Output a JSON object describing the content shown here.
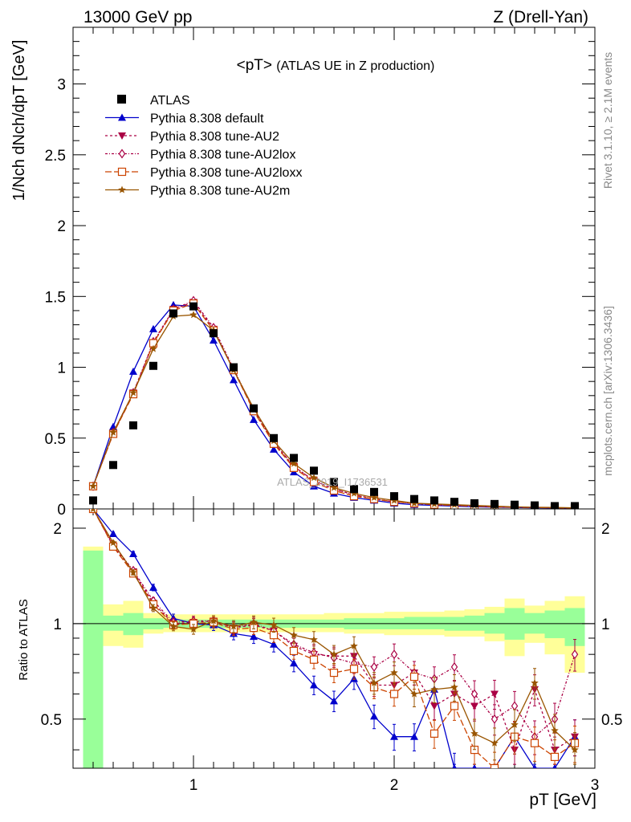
{
  "header": {
    "left": "13000 GeV pp",
    "right": "Z (Drell-Yan)"
  },
  "side": {
    "rivet": "Rivet 3.1.10, ≥ 2.1M events",
    "mcplots": "mcplots.cern.ch [arXiv:1306.3436]"
  },
  "chart_data": {
    "type": "scatter",
    "title": "<pT>",
    "subtitle": "(ATLAS UE in Z production)",
    "watermark": "ATLAS_2019_I1736531",
    "xlabel": "pT [GeV]",
    "ylabel": "1/Nch dNch/dpT [GeV]",
    "ratio_ylabel": "Ratio to ATLAS",
    "xlim": [
      0.4,
      3.0
    ],
    "ylim": [
      0,
      3.4
    ],
    "ratio_ylim": [
      0.35,
      2.3
    ],
    "xticks": [
      1,
      2,
      3
    ],
    "yticks": [
      0,
      0.5,
      1,
      1.5,
      2,
      2.5,
      3
    ],
    "ratio_yticks": [
      0.5,
      1,
      2
    ],
    "x": [
      0.5,
      0.6,
      0.7,
      0.8,
      0.9,
      1.0,
      1.1,
      1.2,
      1.3,
      1.4,
      1.5,
      1.6,
      1.7,
      1.8,
      1.9,
      2.0,
      2.1,
      2.2,
      2.3,
      2.4,
      2.5,
      2.6,
      2.7,
      2.8,
      2.9
    ],
    "data": {
      "name": "ATLAS",
      "values": [
        0.06,
        0.31,
        0.59,
        1.01,
        1.38,
        1.43,
        1.24,
        1.0,
        0.71,
        0.5,
        0.36,
        0.27,
        0.19,
        0.14,
        0.12,
        0.09,
        0.07,
        0.06,
        0.05,
        0.04,
        0.035,
        0.03,
        0.025,
        0.02,
        0.02
      ]
    },
    "series": [
      {
        "name": "Pythia 8.308 default",
        "color": "#0000cc",
        "dash": "",
        "marker": "triangle-up",
        "values": [
          0.16,
          0.58,
          0.97,
          1.27,
          1.44,
          1.43,
          1.19,
          0.91,
          0.63,
          0.42,
          0.26,
          0.16,
          0.11,
          0.08,
          0.06,
          0.04,
          0.03,
          0.025,
          0.02,
          0.015,
          0.012,
          0.01,
          0.008,
          0.006,
          0.005
        ],
        "ratio": [
          2.3,
          1.92,
          1.66,
          1.3,
          1.04,
          1.0,
          0.99,
          0.93,
          0.91,
          0.86,
          0.75,
          0.64,
          0.57,
          0.67,
          0.51,
          0.44,
          0.44,
          0.62,
          0.35,
          0.3,
          0.3,
          0.44,
          0.3,
          0.3,
          0.44
        ]
      },
      {
        "name": "Pythia 8.308 tune-AU2",
        "color": "#aa0044",
        "dash": "3,3",
        "marker": "triangle-down",
        "values": [
          0.16,
          0.53,
          0.82,
          1.17,
          1.41,
          1.46,
          1.27,
          0.98,
          0.7,
          0.47,
          0.3,
          0.2,
          0.14,
          0.1,
          0.07,
          0.05,
          0.04,
          0.03,
          0.025,
          0.02,
          0.015,
          0.012,
          0.01,
          0.008,
          0.007
        ],
        "ratio": [
          2.35,
          1.76,
          1.46,
          1.16,
          1.0,
          1.01,
          1.02,
          0.97,
          0.99,
          0.95,
          0.85,
          0.8,
          0.79,
          0.79,
          0.64,
          0.64,
          0.7,
          0.55,
          0.6,
          0.55,
          0.6,
          0.4,
          0.62,
          0.4,
          0.44
        ]
      },
      {
        "name": "Pythia 8.308 tune-AU2lox",
        "color": "#aa0044",
        "dash": "3,2,1,2",
        "marker": "diamond-open",
        "values": [
          0.16,
          0.54,
          0.82,
          1.18,
          1.41,
          1.47,
          1.28,
          0.99,
          0.7,
          0.47,
          0.3,
          0.2,
          0.14,
          0.1,
          0.07,
          0.05,
          0.04,
          0.03,
          0.025,
          0.02,
          0.015,
          0.012,
          0.01,
          0.008,
          0.007
        ],
        "ratio": [
          2.35,
          1.78,
          1.47,
          1.18,
          1.01,
          1.02,
          1.02,
          0.97,
          1.0,
          0.95,
          0.86,
          0.81,
          0.78,
          0.75,
          0.73,
          0.8,
          0.7,
          0.67,
          0.73,
          0.6,
          0.5,
          0.55,
          0.44,
          0.5,
          0.8
        ]
      },
      {
        "name": "Pythia 8.308 tune-AU2loxx",
        "color": "#cc4400",
        "dash": "8,3",
        "marker": "square-open",
        "values": [
          0.16,
          0.53,
          0.81,
          1.17,
          1.4,
          1.45,
          1.26,
          0.98,
          0.69,
          0.46,
          0.29,
          0.19,
          0.13,
          0.09,
          0.07,
          0.05,
          0.04,
          0.03,
          0.025,
          0.02,
          0.015,
          0.012,
          0.01,
          0.008,
          0.007
        ],
        "ratio": [
          2.3,
          1.75,
          1.44,
          1.15,
          0.99,
          1.0,
          1.01,
          0.96,
          0.97,
          0.92,
          0.82,
          0.77,
          0.7,
          0.72,
          0.63,
          0.6,
          0.68,
          0.45,
          0.55,
          0.4,
          0.35,
          0.44,
          0.42,
          0.38,
          0.42
        ]
      },
      {
        "name": "Pythia 8.308 tune-AU2m",
        "color": "#995500",
        "dash": "",
        "marker": "star",
        "values": [
          0.16,
          0.54,
          0.82,
          1.13,
          1.36,
          1.37,
          1.26,
          0.98,
          0.71,
          0.48,
          0.32,
          0.22,
          0.15,
          0.11,
          0.08,
          0.06,
          0.04,
          0.035,
          0.03,
          0.025,
          0.02,
          0.015,
          0.012,
          0.01,
          0.008
        ],
        "ratio": [
          2.35,
          1.8,
          1.45,
          1.12,
          0.98,
          0.96,
          1.02,
          0.98,
          1.01,
          0.99,
          0.92,
          0.89,
          0.8,
          0.85,
          0.65,
          0.7,
          0.6,
          0.62,
          0.63,
          0.45,
          0.42,
          0.48,
          0.65,
          0.46,
          0.4
        ]
      }
    ],
    "bands": {
      "yellow": [
        [
          0.4,
          1.75
        ],
        [
          0.85,
          1.15
        ],
        [
          0.84,
          1.18
        ],
        [
          0.93,
          1.08
        ],
        [
          0.94,
          1.07
        ],
        [
          0.94,
          1.07
        ],
        [
          0.94,
          1.07
        ],
        [
          0.94,
          1.07
        ],
        [
          0.94,
          1.07
        ],
        [
          0.94,
          1.07
        ],
        [
          0.94,
          1.07
        ],
        [
          0.94,
          1.07
        ],
        [
          0.94,
          1.08
        ],
        [
          0.93,
          1.08
        ],
        [
          0.93,
          1.08
        ],
        [
          0.92,
          1.09
        ],
        [
          0.92,
          1.09
        ],
        [
          0.92,
          1.09
        ],
        [
          0.91,
          1.1
        ],
        [
          0.91,
          1.11
        ],
        [
          0.88,
          1.13
        ],
        [
          0.79,
          1.2
        ],
        [
          0.87,
          1.14
        ],
        [
          0.8,
          1.18
        ],
        [
          0.7,
          1.22
        ]
      ],
      "green": [
        [
          0.35,
          1.7
        ],
        [
          0.95,
          1.06
        ],
        [
          0.92,
          1.08
        ],
        [
          0.96,
          1.04
        ],
        [
          0.97,
          1.03
        ],
        [
          0.97,
          1.03
        ],
        [
          0.97,
          1.03
        ],
        [
          0.97,
          1.03
        ],
        [
          0.97,
          1.03
        ],
        [
          0.97,
          1.03
        ],
        [
          0.97,
          1.03
        ],
        [
          0.97,
          1.03
        ],
        [
          0.97,
          1.03
        ],
        [
          0.96,
          1.04
        ],
        [
          0.96,
          1.04
        ],
        [
          0.96,
          1.04
        ],
        [
          0.96,
          1.05
        ],
        [
          0.96,
          1.05
        ],
        [
          0.95,
          1.05
        ],
        [
          0.95,
          1.06
        ],
        [
          0.93,
          1.08
        ],
        [
          0.89,
          1.12
        ],
        [
          0.93,
          1.08
        ],
        [
          0.9,
          1.1
        ],
        [
          0.85,
          1.12
        ]
      ]
    }
  }
}
